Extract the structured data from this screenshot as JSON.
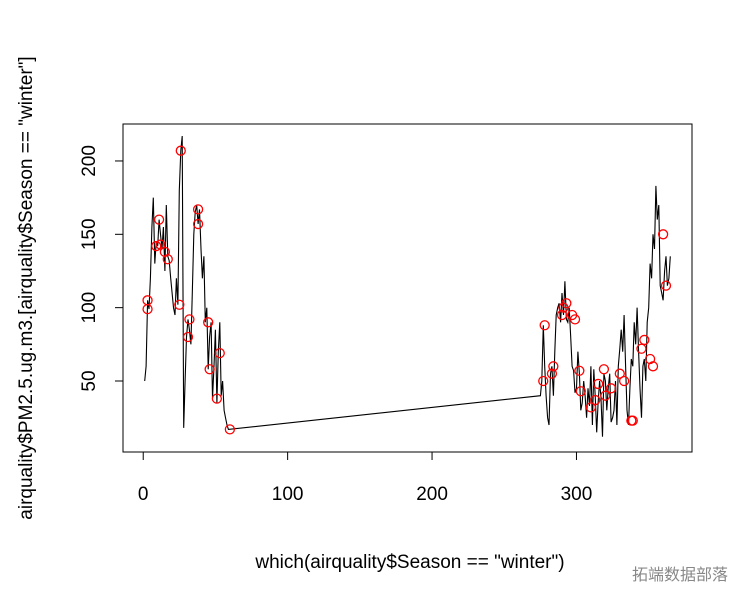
{
  "chart_data": {
    "type": "line",
    "x_label": "which(airquality$Season == \"winter\")",
    "y_label": "airquality$PM2.5.ug.m3.[airquality$Season == \"winter\"]",
    "watermark": "拓端数据部落",
    "xlim": [
      -14,
      380
    ],
    "ylim": [
      1.6,
      225.2
    ],
    "xticks": [
      0,
      100,
      200,
      300
    ],
    "yticks": [
      50,
      100,
      150,
      200
    ],
    "series": [
      {
        "color": "#000000",
        "marker": "none",
        "x": [
          1,
          2,
          3,
          4,
          5,
          6,
          7,
          8,
          9,
          10,
          11,
          12,
          13,
          14,
          15,
          16,
          17,
          18,
          19,
          20,
          21,
          22,
          23,
          24,
          25,
          26,
          27,
          28,
          29,
          30,
          31,
          32,
          33,
          34,
          35,
          36,
          37,
          38,
          39,
          40,
          41,
          42,
          43,
          44,
          45,
          46,
          47,
          48,
          49,
          50,
          51,
          52,
          53,
          54,
          55,
          56,
          57,
          58,
          59,
          275,
          276,
          277,
          278,
          279,
          280,
          281,
          282,
          283,
          284,
          285,
          286,
          287,
          288,
          289,
          290,
          291,
          292,
          293,
          294,
          295,
          296,
          297,
          298,
          299,
          300,
          301,
          302,
          303,
          304,
          305,
          306,
          307,
          308,
          309,
          310,
          311,
          312,
          313,
          314,
          315,
          316,
          317,
          318,
          319,
          320,
          321,
          322,
          323,
          324,
          325,
          326,
          327,
          328,
          329,
          330,
          331,
          332,
          333,
          334,
          335,
          336,
          337,
          338,
          339,
          340,
          341,
          342,
          343,
          344,
          345,
          346,
          347,
          348,
          349,
          350,
          351,
          352,
          353,
          354,
          355,
          356,
          357,
          358,
          359,
          360,
          361,
          362,
          363,
          364,
          365
        ],
        "values": [
          50,
          60,
          105,
          99,
          120,
          155,
          175,
          130,
          145,
          142,
          160,
          150,
          140,
          155,
          125,
          170,
          135,
          132,
          120,
          110,
          100,
          95,
          120,
          102,
          180,
          207,
          217,
          18,
          50,
          80,
          92,
          85,
          75,
          110,
          150,
          165,
          170,
          157,
          167,
          140,
          120,
          135,
          90,
          100,
          58,
          80,
          90,
          38,
          60,
          85,
          35,
          70,
          90,
          40,
          50,
          30,
          25,
          20,
          17,
          40,
          50,
          88,
          60,
          40,
          25,
          20,
          55,
          60,
          40,
          70,
          95,
          100,
          103,
          90,
          110,
          95,
          118,
          92,
          90,
          100,
          80,
          60,
          57,
          42,
          45,
          70,
          55,
          30,
          35,
          50,
          40,
          25,
          45,
          33,
          60,
          20,
          58,
          40,
          15,
          35,
          50,
          38,
          12,
          55,
          50,
          30,
          45,
          55,
          22,
          25,
          30,
          50,
          20,
          60,
          72,
          85,
          70,
          95,
          60,
          30,
          20,
          45,
          65,
          60,
          90,
          75,
          100,
          70,
          45,
          25,
          60,
          65,
          50,
          90,
          100,
          130,
          120,
          150,
          140,
          183,
          160,
          170,
          115,
          110,
          105,
          125,
          135,
          115,
          120,
          135
        ]
      },
      {
        "color": "#ff0000",
        "marker": "circle",
        "x": [
          3,
          3,
          9,
          11,
          12,
          15,
          17,
          25,
          26,
          31,
          32,
          38,
          38,
          45,
          46,
          51,
          53,
          60,
          277,
          278,
          283,
          284,
          290,
          291,
          293,
          297,
          299,
          302,
          303,
          310,
          313,
          315,
          319,
          320,
          324,
          330,
          333,
          338,
          339,
          345,
          347,
          351,
          353,
          360,
          362
        ],
        "values": [
          105,
          99,
          142,
          160,
          143,
          138,
          133,
          102,
          207,
          80,
          92,
          167,
          157,
          90,
          58,
          38,
          69,
          17,
          50,
          88,
          55,
          60,
          95,
          100,
          103,
          95,
          92,
          57,
          43,
          32,
          37,
          48,
          58,
          40,
          45,
          55,
          50,
          23,
          23,
          72,
          78,
          65,
          60,
          150,
          115
        ]
      }
    ]
  }
}
